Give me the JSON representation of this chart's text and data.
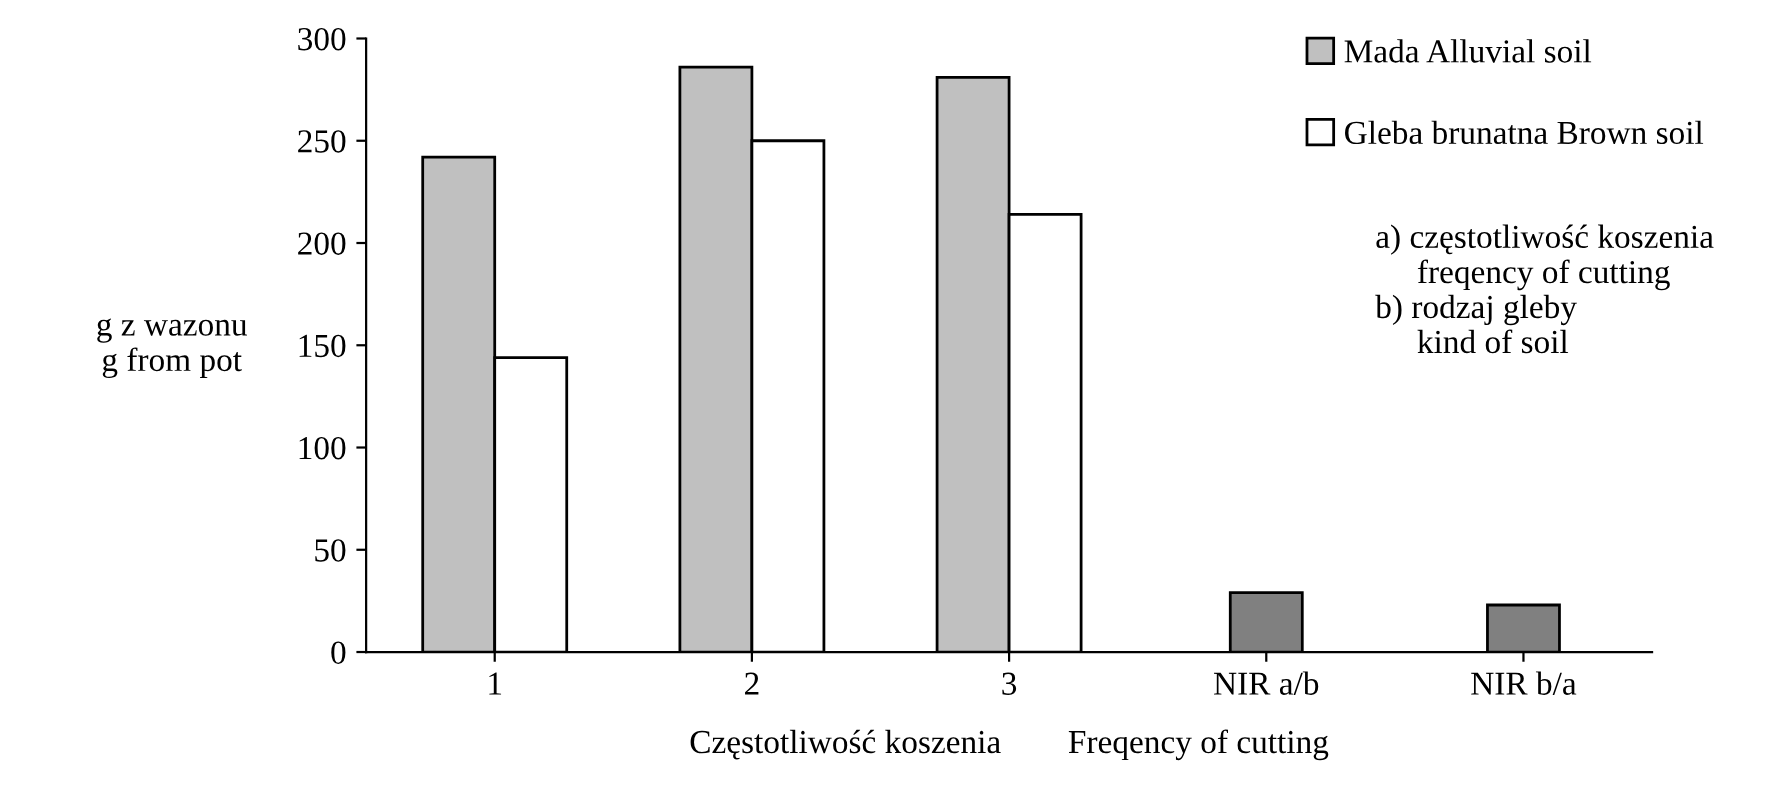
{
  "chart_data": {
    "type": "bar",
    "categories": [
      "1",
      "2",
      "3",
      "NIR a/b",
      "NIR b/a"
    ],
    "series": [
      {
        "name": "Mada Alluvial soil",
        "color": "#c0c0c0",
        "colors": [
          "#c0c0c0",
          "#c0c0c0",
          "#c0c0c0",
          "#808080",
          "#808080"
        ],
        "values": [
          242,
          286,
          281,
          29,
          23
        ]
      },
      {
        "name": "Gleba brunatna Brown soil",
        "color": "#ffffff",
        "values": [
          144,
          250,
          214,
          null,
          null
        ]
      }
    ],
    "ylim": [
      0,
      300
    ],
    "yticks": [
      0,
      50,
      100,
      150,
      200,
      250,
      300
    ],
    "ylabel": "g z wazonu\ng from pot",
    "xlabel": "Częstotliwość koszenia        Freqency of cutting",
    "annotations": [
      "a) częstotliwość koszenia\n     freqency of cutting\nb) rodzaj gleby\n     kind of soil"
    ],
    "legend": "top right",
    "grid": false
  }
}
